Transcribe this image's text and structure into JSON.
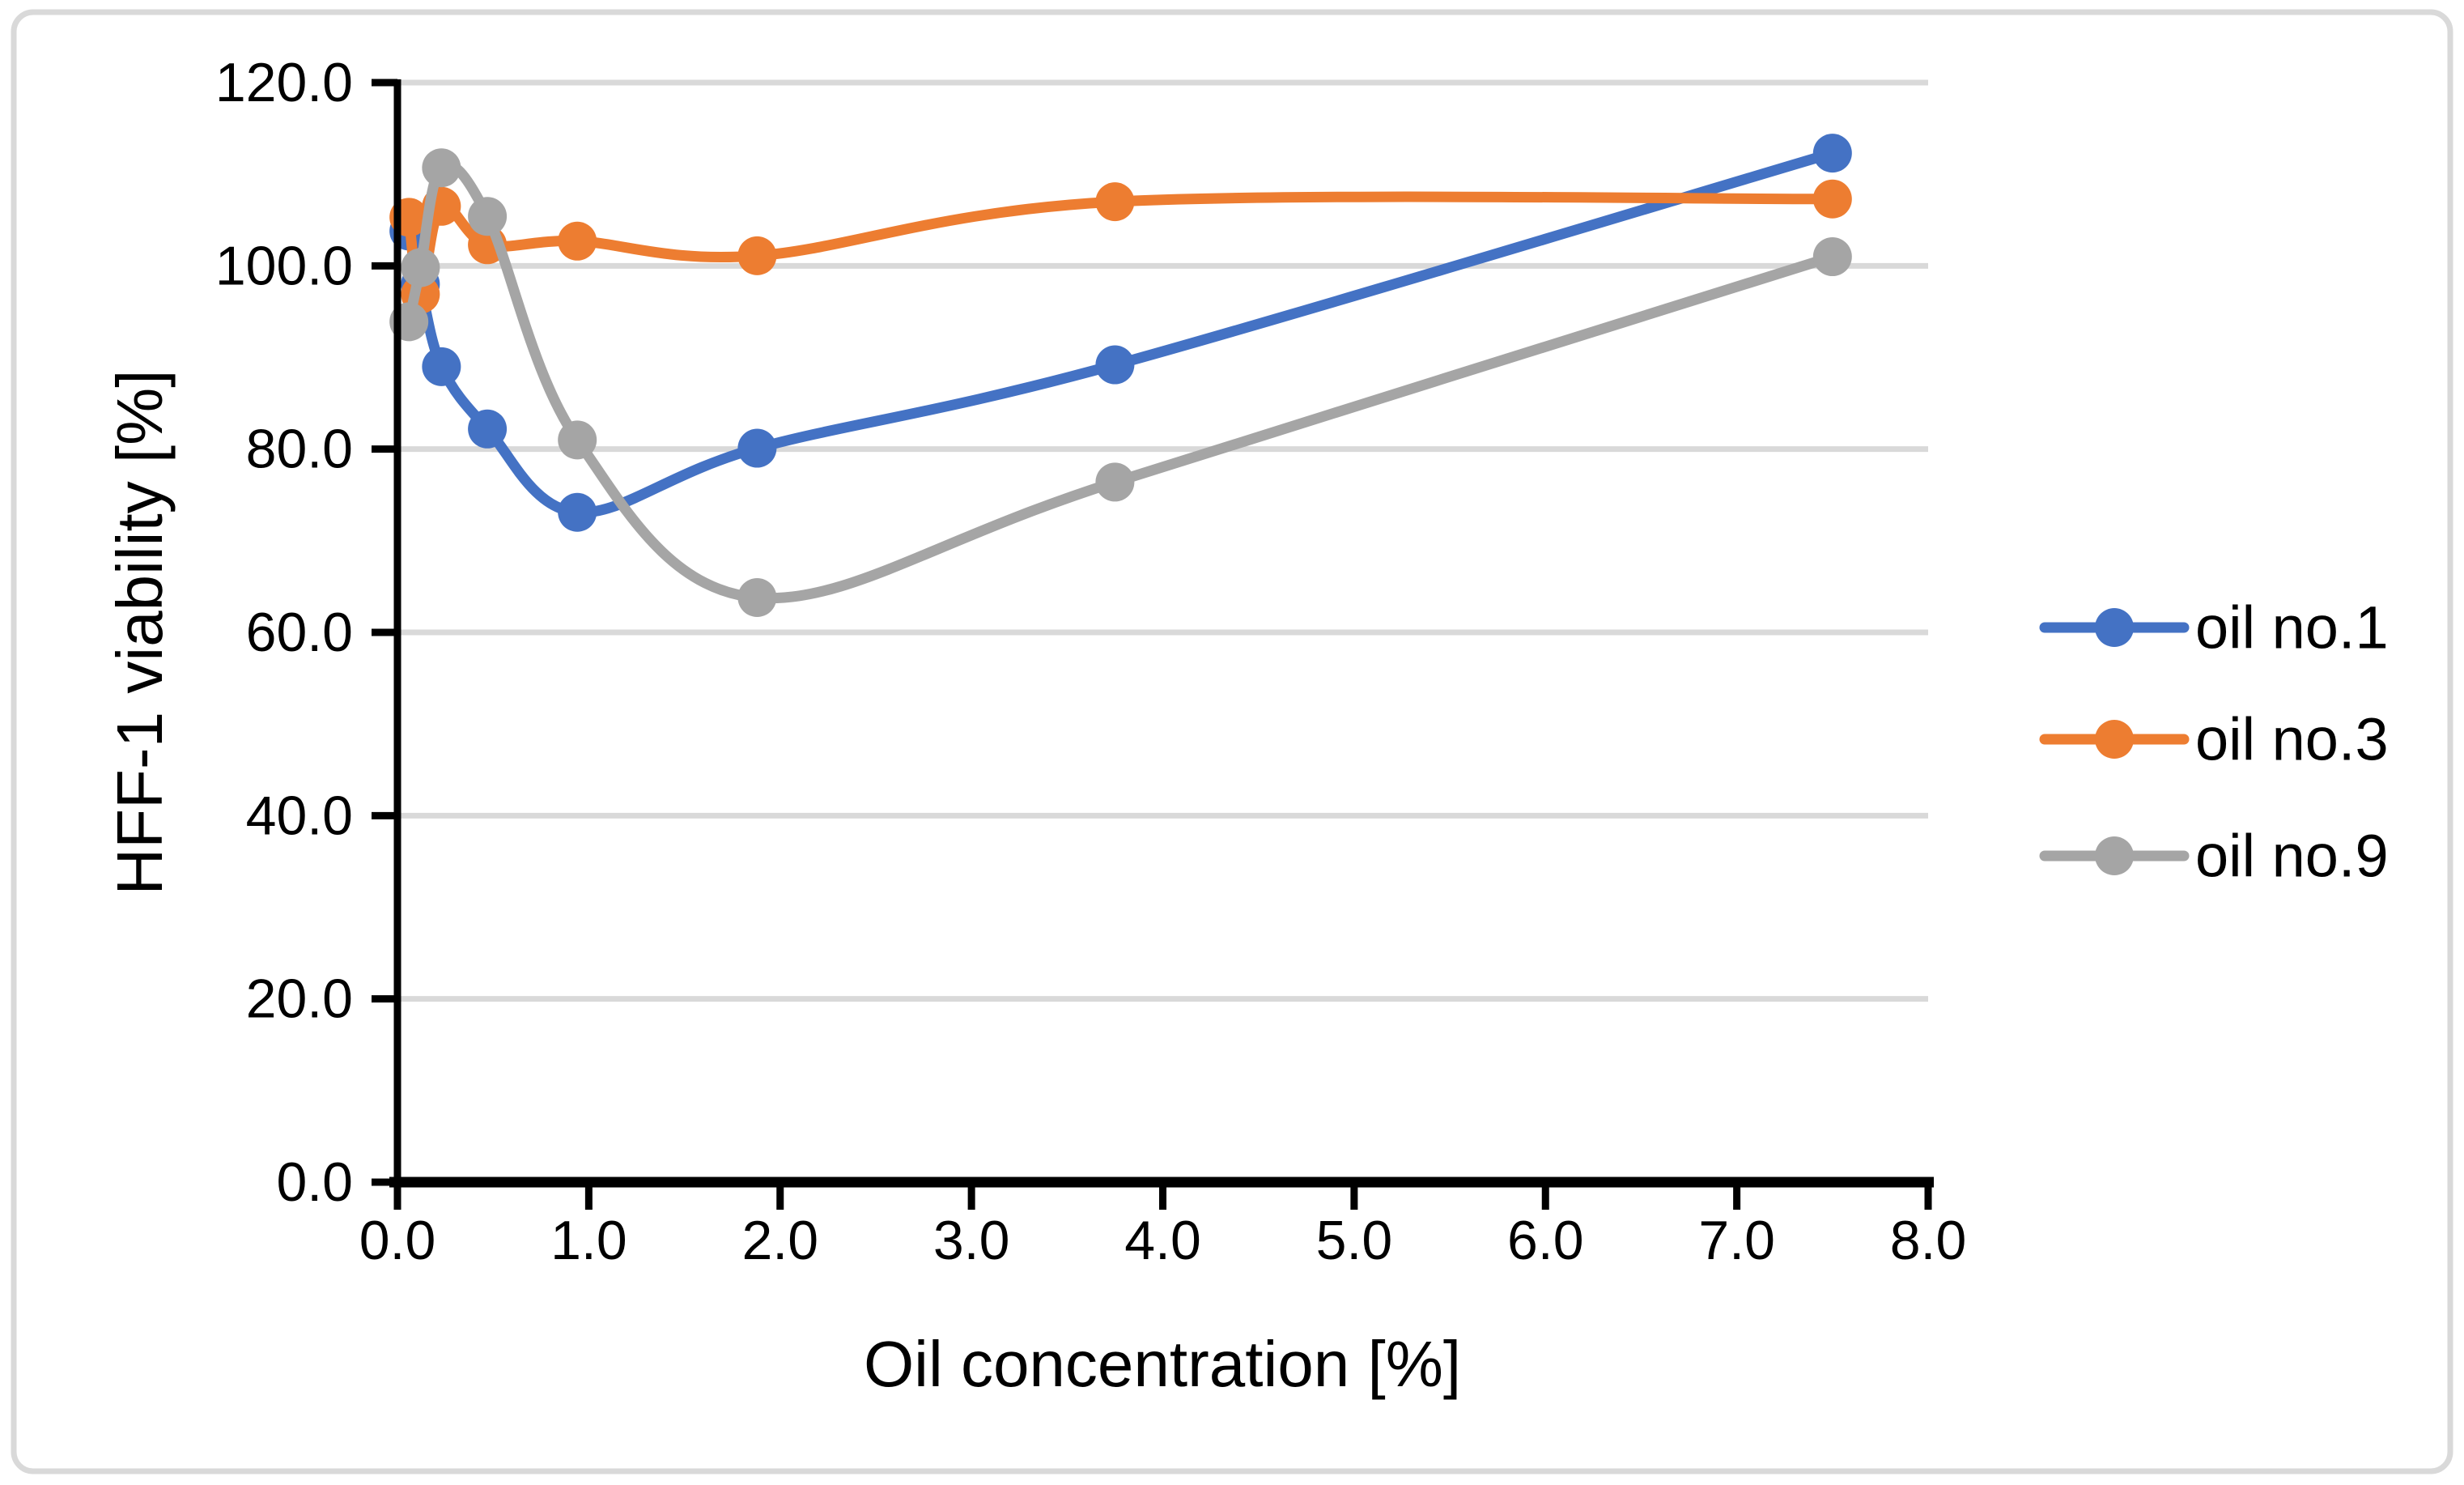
{
  "figure": {
    "background_color": "#FFFFFF",
    "border_color": "#D9D9D9"
  },
  "chart_data": {
    "type": "line",
    "x": [
      0.06,
      0.12,
      0.23,
      0.47,
      0.94,
      1.88,
      3.75,
      7.5
    ],
    "series": [
      {
        "name": "oil no.1",
        "color": "#4472C4",
        "values": [
          103.8,
          98.0,
          89.0,
          82.2,
          73.1,
          80.1,
          89.2,
          112.3
        ]
      },
      {
        "name": "oil no.3",
        "color": "#ED7D31",
        "values": [
          105.3,
          96.9,
          106.5,
          102.3,
          102.7,
          101.1,
          107.0,
          107.3
        ]
      },
      {
        "name": "oil no.9",
        "color": "#A5A5A5",
        "values": [
          93.9,
          99.8,
          110.7,
          105.4,
          81.0,
          63.8,
          76.4,
          101.0
        ]
      }
    ],
    "title": "",
    "xlabel": "Oil concentration [%]",
    "ylabel": "HFF-1 viability [%]",
    "xlim": [
      0,
      8
    ],
    "ylim": [
      0,
      120
    ],
    "xticks": [
      0,
      1,
      2,
      3,
      4,
      5,
      6,
      7,
      8
    ],
    "xtick_labels": [
      "0.0",
      "1.0",
      "2.0",
      "3.0",
      "4.0",
      "5.0",
      "6.0",
      "7.0",
      "8.0"
    ],
    "yticks": [
      0,
      20,
      40,
      60,
      80,
      100,
      120
    ],
    "ytick_labels": [
      "0.0",
      "20.0",
      "40.0",
      "60.0",
      "80.0",
      "100.0",
      "120.0"
    ],
    "grid": "horizontal",
    "gridline_color": "#D9D9D9",
    "axis_color": "#000000",
    "marker": "circle",
    "line_smoothing": true,
    "legend_position": "right"
  }
}
